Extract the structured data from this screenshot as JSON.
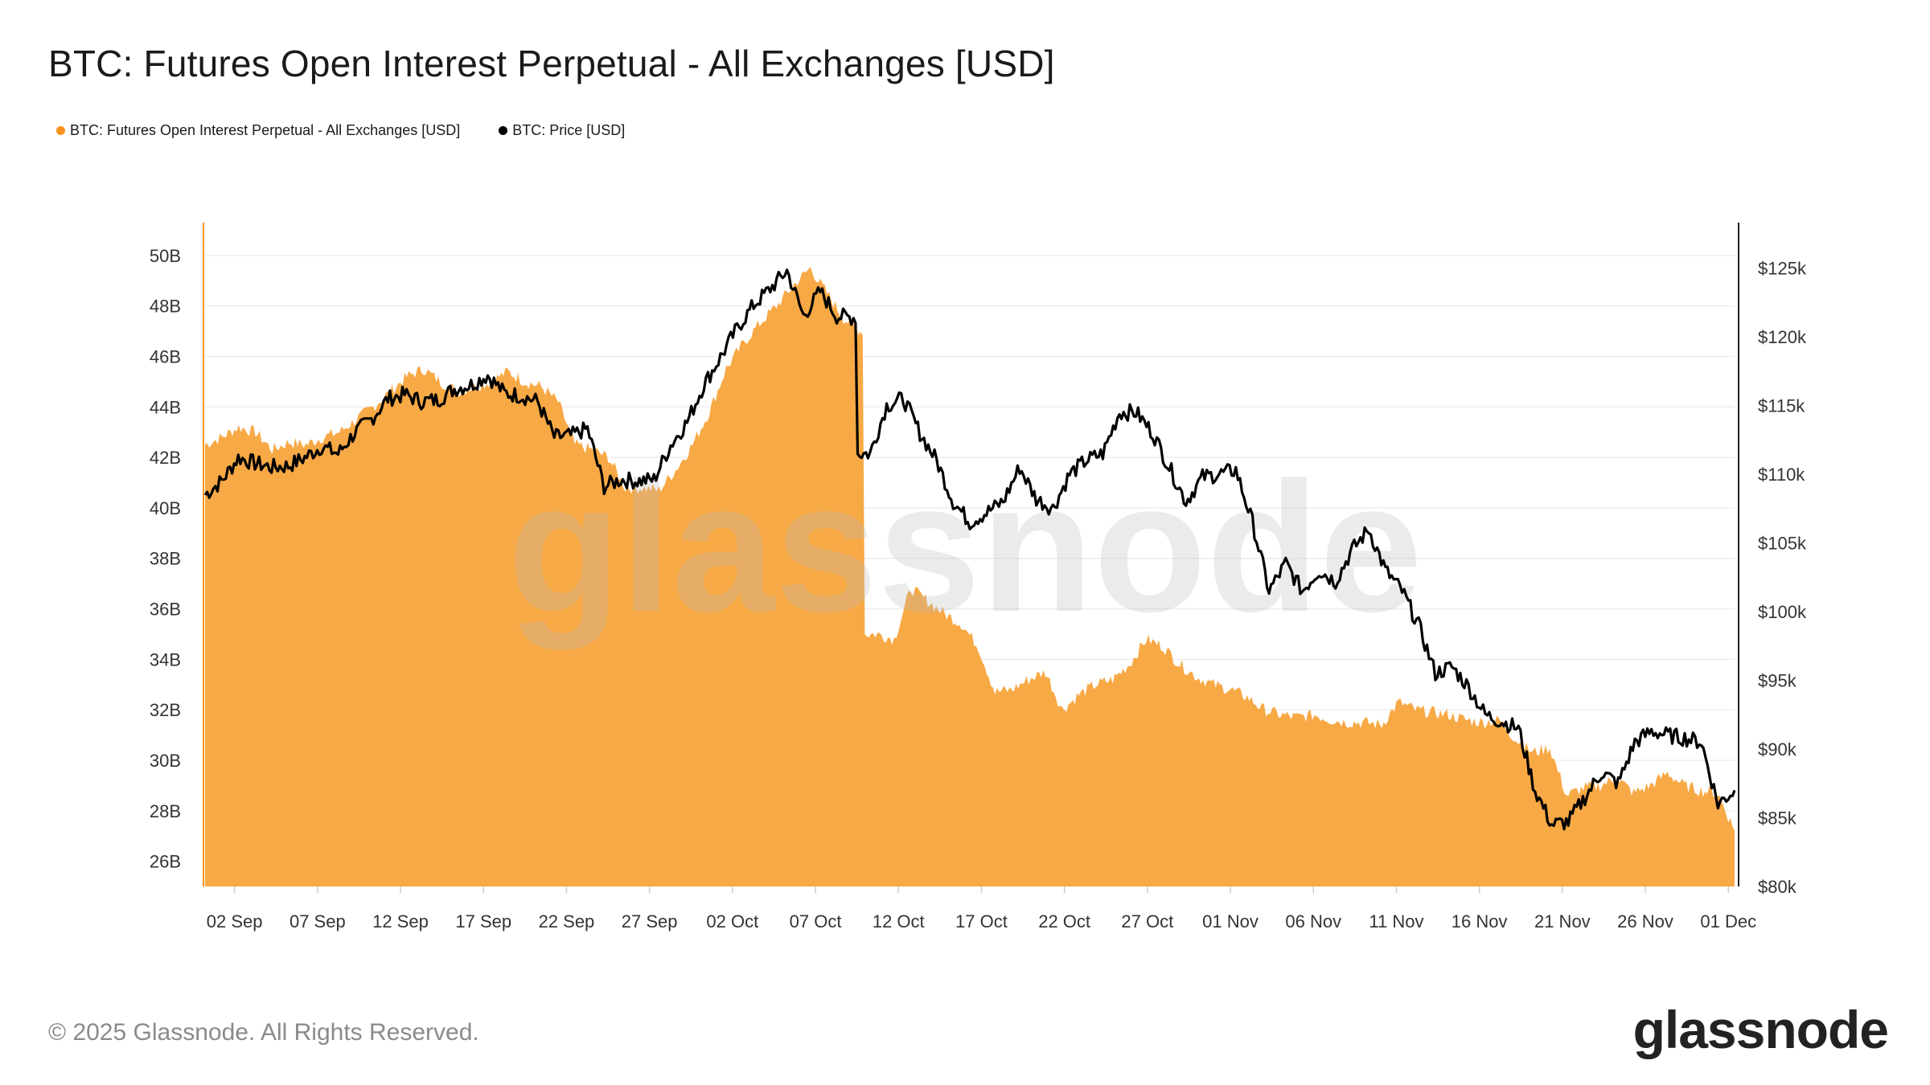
{
  "title": "BTC: Futures Open Interest Perpetual - All Exchanges [USD]",
  "footer": "© 2025 Glassnode. All Rights Reserved.",
  "logo": "glassnode",
  "watermark": "glassnode",
  "chart_data": {
    "type": "area+line",
    "title": "BTC: Futures Open Interest Perpetual - All Exchanges [USD]",
    "legend_position": "top-left",
    "grid": "horizontal",
    "x_start": "2025-09-01",
    "x_ticks": [
      "02 Sep",
      "07 Sep",
      "12 Sep",
      "17 Sep",
      "22 Sep",
      "27 Sep",
      "02 Oct",
      "07 Oct",
      "12 Oct",
      "17 Oct",
      "22 Oct",
      "27 Oct",
      "01 Nov",
      "06 Nov",
      "11 Nov",
      "16 Nov",
      "21 Nov",
      "26 Nov",
      "01 Dec"
    ],
    "y_left": {
      "ticks": [
        "26B",
        "28B",
        "30B",
        "32B",
        "34B",
        "36B",
        "38B",
        "40B",
        "42B",
        "44B",
        "46B",
        "48B",
        "50B"
      ],
      "range_billion_usd": [
        25,
        51.3
      ]
    },
    "y_right": {
      "ticks": [
        "$80k",
        "$85k",
        "$90k",
        "$95k",
        "$100k",
        "$105k",
        "$110k",
        "$115k",
        "$120k",
        "$125k"
      ],
      "range_k_usd": [
        80,
        128.3
      ]
    },
    "series": [
      {
        "name": "BTC: Futures Open Interest Perpetual - All Exchanges [USD]",
        "axis": "left",
        "unit": "billion USD",
        "color": "#f7931a",
        "fill": "#f7a945",
        "style": "area",
        "values": [
          42.5,
          42.8,
          43.2,
          43.0,
          42.3,
          42.6,
          42.5,
          42.8,
          43.0,
          43.5,
          44.0,
          44.6,
          45.2,
          45.5,
          45.0,
          44.6,
          44.8,
          45.0,
          45.4,
          45.0,
          44.8,
          44.2,
          42.5,
          42.3,
          42.0,
          40.8,
          40.8,
          40.7,
          41.5,
          42.5,
          43.8,
          45.5,
          46.5,
          47.3,
          48.0,
          48.8,
          49.5,
          48.5,
          47.5,
          47.0,
          35.0,
          34.8,
          36.8,
          36.3,
          35.8,
          35.4,
          34.5,
          32.7,
          32.8,
          33.2,
          33.5,
          32.0,
          32.6,
          33.0,
          33.2,
          33.8,
          34.8,
          34.5,
          33.8,
          33.3,
          33.0,
          32.8,
          32.5,
          32.0,
          31.8,
          31.7,
          31.8,
          31.6,
          31.5,
          31.5,
          31.4,
          32.3,
          32.0,
          31.9,
          31.8,
          31.6,
          31.5,
          31.6,
          30.8,
          30.3,
          30.5,
          28.6,
          28.9,
          29.0,
          29.3,
          28.7,
          29.0,
          29.5,
          29.0,
          28.8,
          28.7,
          27.2
        ]
      },
      {
        "name": "BTC: Price [USD]",
        "axis": "right",
        "unit": "thousand USD",
        "color": "#000000",
        "style": "line",
        "values": [
          108.5,
          109.5,
          111.2,
          110.8,
          110.5,
          110.6,
          111.2,
          112.0,
          111.5,
          113.0,
          114.0,
          115.5,
          115.8,
          115.3,
          115.4,
          116.2,
          116.5,
          117.2,
          115.9,
          115.7,
          115.3,
          112.7,
          112.8,
          113.3,
          109.1,
          109.6,
          109.5,
          109.6,
          112.1,
          113.8,
          116.5,
          118.5,
          120.6,
          122.3,
          123.5,
          124.8,
          121.5,
          123.3,
          121.5,
          121.4,
          111.5,
          115.0,
          115.5,
          113.0,
          111.0,
          108.0,
          106.5,
          107.2,
          108.0,
          110.5,
          108.2,
          107.5,
          110.0,
          111.0,
          111.5,
          114.5,
          114.5,
          113.0,
          110.5,
          108.0,
          109.8,
          110.0,
          110.3,
          106.5,
          101.5,
          103.5,
          101.5,
          103.0,
          102.2,
          104.5,
          106.0,
          103.0,
          101.5,
          99.0,
          95.5,
          96.0,
          94.5,
          92.5,
          92.0,
          91.5,
          87.0,
          84.5,
          84.7,
          86.5,
          88.3,
          87.5,
          90.5,
          91.3,
          91.0,
          90.8,
          90.5,
          86.0,
          87.0
        ]
      }
    ]
  }
}
